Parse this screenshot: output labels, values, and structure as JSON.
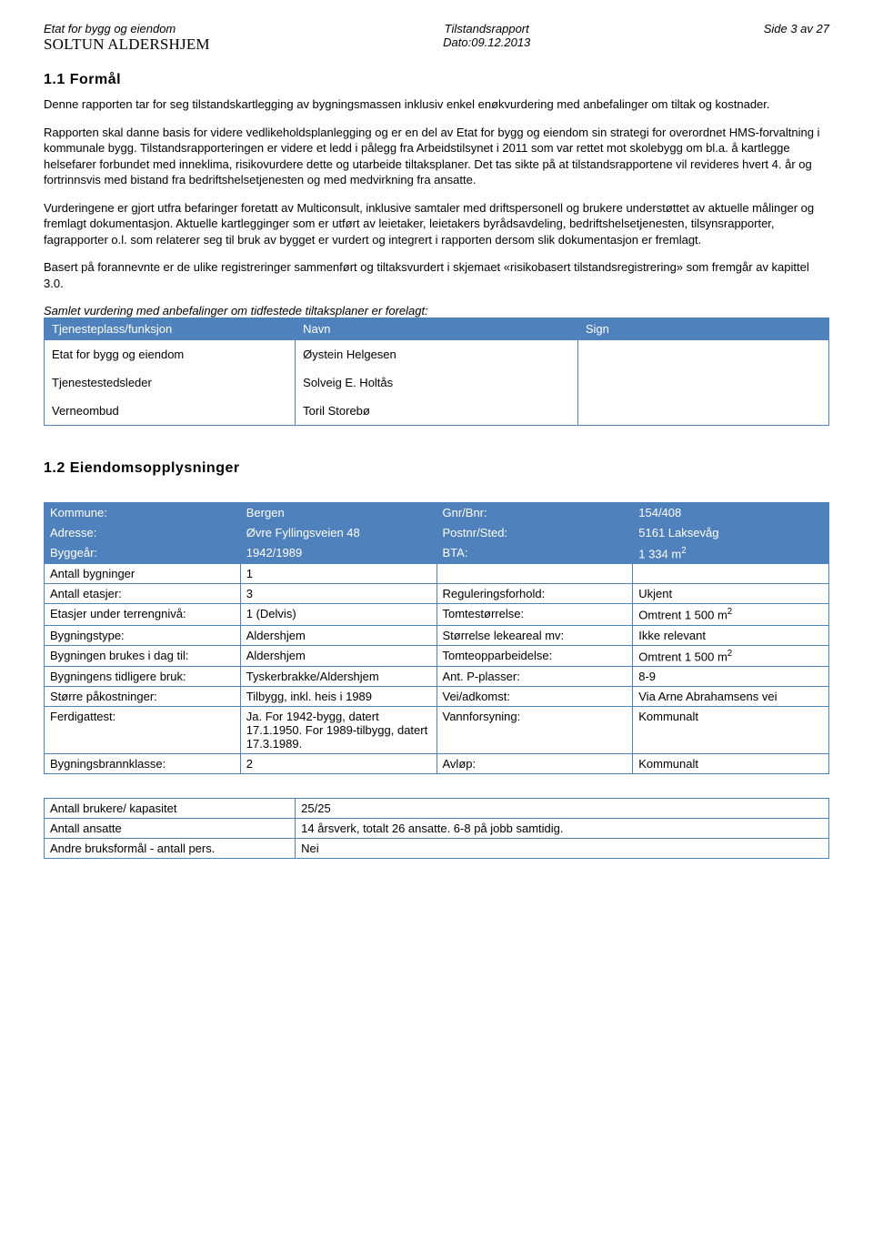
{
  "header": {
    "left_line1": "Etat for bygg og eiendom",
    "left_line2": "SOLTUN ALDERSHJEM",
    "center_line1": "Tilstandsrapport",
    "center_line2": "Dato:09.12.2013",
    "right_line1": "Side 3 av 27"
  },
  "section1": {
    "heading": "1.1 Formål",
    "para1": "Denne rapporten tar for seg tilstandskartlegging av bygningsmassen inklusiv enkel enøkvurdering med anbefalinger om tiltak og kostnader.",
    "para2": "Rapporten skal danne basis for videre vedlikeholdsplanlegging og er en del av Etat for bygg og eiendom sin strategi for overordnet HMS-forvaltning i kommunale bygg. Tilstandsrapporteringen er videre et ledd i pålegg fra Arbeidstilsynet i 2011 som var rettet mot skolebygg om bl.a. å kartlegge helsefarer forbundet med inneklima, risikovurdere dette og utarbeide tiltaksplaner. Det tas sikte på at tilstandsrapportene vil revideres hvert 4. år og fortrinnsvis med bistand fra bedriftshelsetjenesten og med medvirkning fra ansatte.",
    "para3": "Vurderingene er gjort utfra befaringer foretatt av Multiconsult, inklusive samtaler med driftspersonell og brukere understøttet av aktuelle målinger og fremlagt dokumentasjon. Aktuelle kartlegginger som er utført av leietaker, leietakers byrådsavdeling, bedriftshelsetjenesten, tilsynsrapporter, fagrapporter o.l.  som relaterer seg til bruk av bygget er vurdert og integrert i rapporten dersom slik dokumentasjon er fremlagt.",
    "para4": "Basert på forannevnte er de ulike registreringer sammenført og tiltaksvurdert i skjemaet «risikobasert tilstandsregistrering» som fremgår av kapittel 3.0.",
    "lead_in": "Samlet vurdering med anbefalinger om tidfestede tiltaksplaner er forelagt:"
  },
  "sign_table": {
    "headers": [
      "Tjenesteplass/funksjon",
      "Navn",
      "Sign"
    ],
    "rows": [
      {
        "role": "Etat for bygg og eiendom",
        "name": "Øystein Helgesen",
        "sign": ""
      },
      {
        "role": "Tjenestestedsleder",
        "name": "Solveig E. Holtås",
        "sign": ""
      },
      {
        "role": "Verneombud",
        "name": "Toril Storebø",
        "sign": ""
      }
    ]
  },
  "section2": {
    "heading": "1.2 Eiendomsopplysninger",
    "rows": [
      {
        "k1": "Kommune:",
        "v1": "Bergen",
        "k2": "Gnr/Bnr:",
        "v2": "154/408",
        "hdr": true
      },
      {
        "k1": "Adresse:",
        "v1": "Øvre Fyllingsveien 48",
        "k2": "Postnr/Sted:",
        "v2": "5161 Laksevåg",
        "hdr": true
      },
      {
        "k1": "Byggeår:",
        "v1": "1942/1989",
        "k2": "BTA:",
        "v2": "1 334 m",
        "v2_sup": "2",
        "hdr": true
      },
      {
        "k1": "Antall bygninger",
        "v1": "1",
        "k2": "",
        "v2": ""
      },
      {
        "k1": "Antall etasjer:",
        "v1": "3",
        "k2": "Reguleringsforhold:",
        "v2": "Ukjent"
      },
      {
        "k1": "Etasjer under terrengnivå:",
        "v1": "1 (Delvis)",
        "k2": "Tomtestørrelse:",
        "v2": "Omtrent 1 500 m",
        "v2_sup": "2"
      },
      {
        "k1": "Bygningstype:",
        "v1": "Aldershjem",
        "k2": "Størrelse lekeareal mv:",
        "v2": "Ikke relevant"
      },
      {
        "k1": "Bygningen brukes i dag til:",
        "v1": "Aldershjem",
        "k2": "Tomteopparbeidelse:",
        "v2": "Omtrent 1 500 m",
        "v2_sup": "2"
      },
      {
        "k1": "Bygningens tidligere bruk:",
        "v1": "Tyskerbrakke/Aldershjem",
        "k2": "Ant. P-plasser:",
        "v2": "8-9"
      },
      {
        "k1": "Større påkostninger:",
        "v1": "Tilbygg, inkl. heis i 1989",
        "k2": "Vei/adkomst:",
        "v2": "Via Arne Abrahamsens vei"
      },
      {
        "k1": "Ferdigattest:",
        "v1": "Ja. For 1942-bygg, datert 17.1.1950. For 1989-tilbygg, datert 17.3.1989.",
        "k2": "Vannforsyning:",
        "v2": "Kommunalt"
      },
      {
        "k1": "Bygningsbrannklasse:",
        "v1": "2",
        "k2": "Avløp:",
        "v2": "Kommunalt"
      }
    ]
  },
  "misc_table": {
    "rows": [
      {
        "k": "Antall brukere/ kapasitet",
        "v": "25/25"
      },
      {
        "k": "Antall ansatte",
        "v": "14 årsverk, totalt 26 ansatte. 6-8 på jobb samtidig."
      },
      {
        "k": "Andre bruksformål - antall pers.",
        "v": "Nei"
      }
    ]
  },
  "colors": {
    "header_bg": "#4f81bd",
    "header_text": "#ffffff",
    "border": "#4f81bd"
  }
}
